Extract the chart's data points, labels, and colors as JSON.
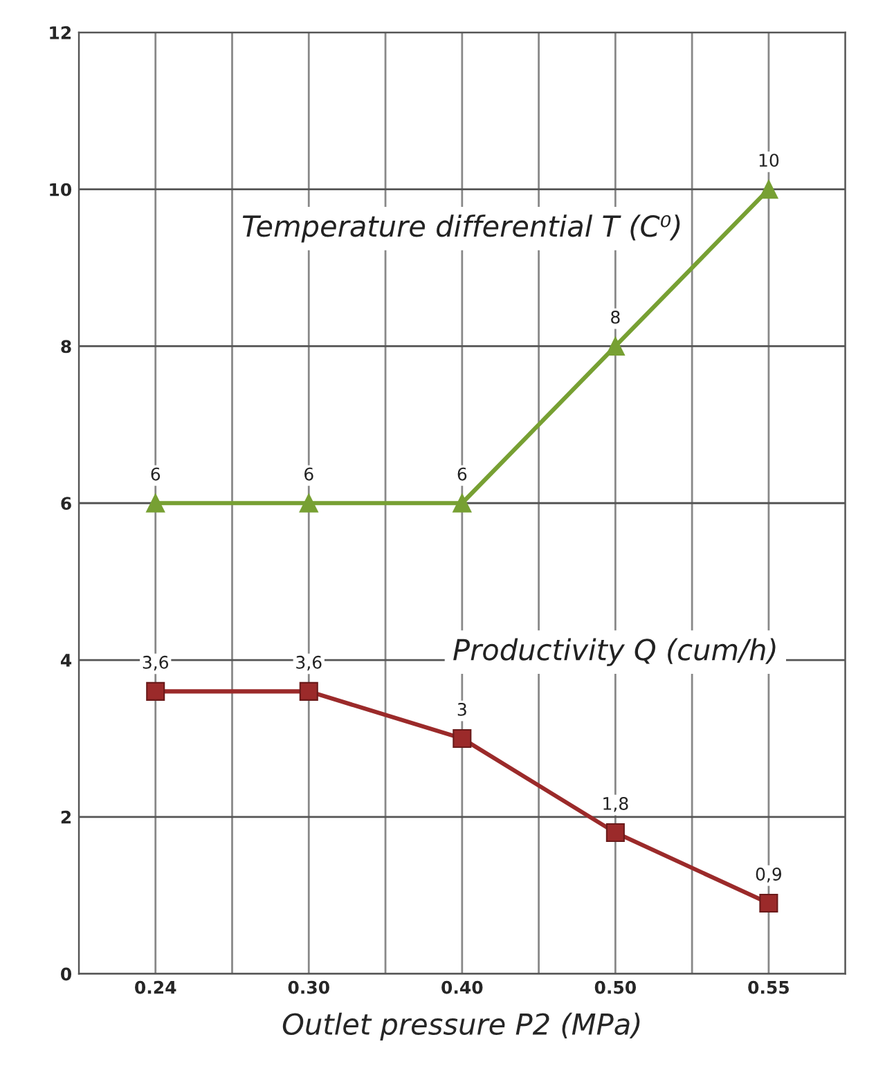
{
  "chart_data": {
    "type": "line",
    "xlabel": "Outlet pressure P2 (MPa)",
    "categories": [
      "0.24",
      "0.30",
      "0.40",
      "0.50",
      "0.55"
    ],
    "series": [
      {
        "name": "Temperature differential T (C⁰)",
        "color": "#77a033",
        "marker": "triangle",
        "values": [
          6,
          6,
          6,
          8,
          10
        ],
        "value_labels": [
          "6",
          "6",
          "6",
          "8",
          "10"
        ]
      },
      {
        "name": "Productivity Q (cum/h)",
        "color": "#9b2a2a",
        "marker": "square",
        "values": [
          3.6,
          3.6,
          3,
          1.8,
          0.9
        ],
        "value_labels": [
          "3,6",
          "3,6",
          "3",
          "1,8",
          "0,9"
        ]
      }
    ],
    "ylim": [
      0,
      12
    ],
    "yticks": [
      0,
      2,
      4,
      6,
      8,
      10,
      12
    ],
    "grid": true,
    "line_style": "solid"
  }
}
